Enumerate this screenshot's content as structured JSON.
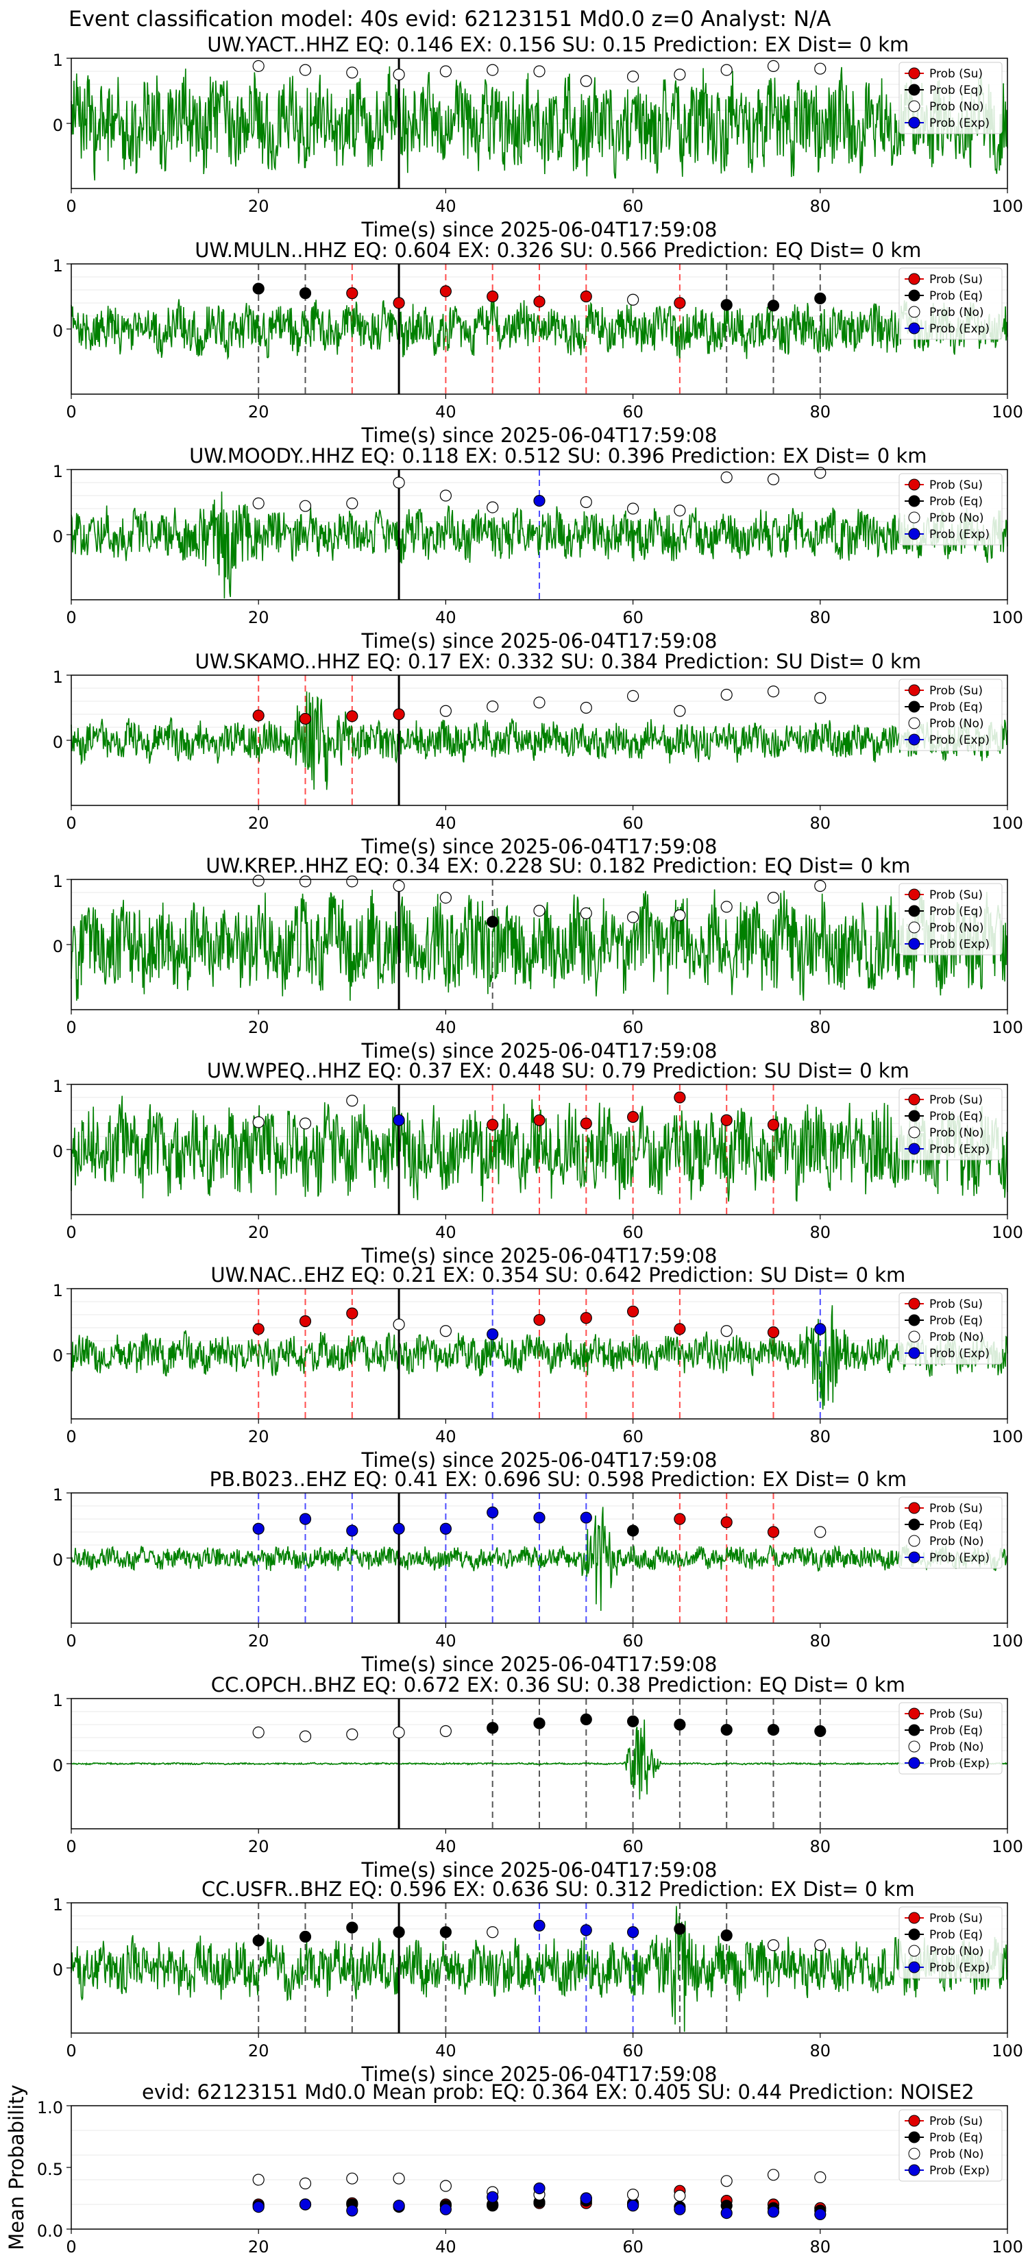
{
  "figure": {
    "suptitle": "Event classification model: 40s evid: 62123151 Md0.0 z=0 Analyst: N/A",
    "xlabel": "Time(s) since 2025-06-04T17:59:08"
  },
  "colors": {
    "su": "#e00000",
    "eq": "#000000",
    "no": "#ffffff",
    "exp": "#0000e0",
    "waveform": "#008000",
    "su_line": "#ff4d4d",
    "eq_line": "#555555",
    "exp_line": "#4d4dff"
  },
  "legend": [
    "Prob (Su)",
    "Prob (Eq)",
    "Prob (No)",
    "Prob (Exp)"
  ],
  "chart_data": [
    {
      "type": "scatter",
      "station": "UW.YACT..HHZ",
      "title": "UW.YACT..HHZ   EQ: 0.146  EX: 0.156  SU: 0.15   Prediction: EX    Dist= 0 km",
      "xlim": [
        0,
        100
      ],
      "ylim": [
        -1,
        1
      ],
      "xticks": [
        0,
        20,
        40,
        60,
        80,
        100
      ],
      "yticks": [
        0,
        1
      ],
      "pick_time": 35,
      "amp": 0.85,
      "burst": null,
      "x": [
        20,
        25,
        30,
        35,
        40,
        45,
        50,
        55,
        60,
        65,
        70,
        75,
        80
      ],
      "values": [
        0.88,
        0.82,
        0.78,
        0.75,
        0.8,
        0.82,
        0.8,
        0.65,
        0.72,
        0.75,
        0.82,
        0.88,
        0.84
      ],
      "classes": [
        "No",
        "No",
        "No",
        "No",
        "No",
        "No",
        "No",
        "No",
        "No",
        "No",
        "No",
        "No",
        "No"
      ]
    },
    {
      "type": "scatter",
      "station": "UW.MULN..HHZ",
      "title": "UW.MULN..HHZ   EQ: 0.604  EX: 0.326  SU: 0.566   Prediction: EQ    Dist= 0 km",
      "xlim": [
        0,
        100
      ],
      "ylim": [
        -1,
        1
      ],
      "xticks": [
        0,
        20,
        40,
        60,
        80,
        100
      ],
      "yticks": [
        0,
        1
      ],
      "pick_time": 35,
      "amp": 0.45,
      "burst": null,
      "x": [
        20,
        25,
        30,
        35,
        40,
        45,
        50,
        55,
        60,
        65,
        70,
        75,
        80
      ],
      "values": [
        0.62,
        0.55,
        0.55,
        0.4,
        0.58,
        0.5,
        0.42,
        0.5,
        0.45,
        0.4,
        0.37,
        0.36,
        0.47
      ],
      "classes": [
        "Eq",
        "Eq",
        "Su",
        "Su",
        "Su",
        "Su",
        "Su",
        "Su",
        "No",
        "Su",
        "Eq",
        "Eq",
        "Eq"
      ]
    },
    {
      "type": "scatter",
      "station": "UW.MOODY..HHZ",
      "title": "UW.MOODY..HHZ   EQ: 0.118  EX: 0.512  SU: 0.396   Prediction: EX    Dist= 0 km",
      "xlim": [
        0,
        100
      ],
      "ylim": [
        -1,
        1
      ],
      "xticks": [
        0,
        20,
        40,
        60,
        80,
        100
      ],
      "yticks": [
        0,
        1
      ],
      "pick_time": 35,
      "amp": 0.45,
      "burst": {
        "start": 13,
        "end": 20,
        "amp": 0.95
      },
      "x": [
        20,
        25,
        30,
        35,
        40,
        45,
        50,
        55,
        60,
        65,
        70,
        75,
        80
      ],
      "values": [
        0.48,
        0.44,
        0.48,
        0.8,
        0.6,
        0.42,
        0.52,
        0.5,
        0.4,
        0.37,
        0.88,
        0.85,
        0.95
      ],
      "classes": [
        "No",
        "No",
        "No",
        "No",
        "No",
        "No",
        "Exp",
        "No",
        "No",
        "No",
        "No",
        "No",
        "No"
      ]
    },
    {
      "type": "scatter",
      "station": "UW.SKAMO..HHZ",
      "title": "UW.SKAMO..HHZ   EQ: 0.17  EX: 0.332  SU: 0.384   Prediction: SU    Dist= 0 km",
      "xlim": [
        0,
        100
      ],
      "ylim": [
        -1,
        1
      ],
      "xticks": [
        0,
        20,
        40,
        60,
        80,
        100
      ],
      "yticks": [
        0,
        1
      ],
      "pick_time": 35,
      "amp": 0.35,
      "burst": {
        "start": 23,
        "end": 30,
        "amp": 0.95
      },
      "x": [
        20,
        25,
        30,
        35,
        40,
        45,
        50,
        55,
        60,
        65,
        70,
        75,
        80
      ],
      "values": [
        0.38,
        0.33,
        0.37,
        0.4,
        0.45,
        0.52,
        0.58,
        0.5,
        0.68,
        0.45,
        0.7,
        0.75,
        0.65
      ],
      "classes": [
        "Su",
        "Su",
        "Su",
        "Su",
        "No",
        "No",
        "No",
        "No",
        "No",
        "No",
        "No",
        "No",
        "No"
      ]
    },
    {
      "type": "scatter",
      "station": "UW.KREP..HHZ",
      "title": "UW.KREP..HHZ   EQ: 0.34  EX: 0.228  SU: 0.182   Prediction: EQ    Dist= 0 km",
      "xlim": [
        0,
        100
      ],
      "ylim": [
        -1,
        1
      ],
      "xticks": [
        0,
        20,
        40,
        60,
        80,
        100
      ],
      "yticks": [
        0,
        1
      ],
      "pick_time": 35,
      "amp": 0.85,
      "burst": null,
      "x": [
        20,
        25,
        30,
        35,
        40,
        45,
        50,
        55,
        60,
        65,
        70,
        75,
        80
      ],
      "values": [
        0.98,
        0.97,
        0.97,
        0.9,
        0.72,
        0.35,
        0.52,
        0.48,
        0.42,
        0.45,
        0.58,
        0.72,
        0.9
      ],
      "classes": [
        "No",
        "No",
        "No",
        "No",
        "No",
        "Eq",
        "No",
        "No",
        "No",
        "No",
        "No",
        "No",
        "No"
      ]
    },
    {
      "type": "scatter",
      "station": "UW.WPEQ..HHZ",
      "title": "UW.WPEQ..HHZ   EQ: 0.37  EX: 0.448  SU: 0.79   Prediction: SU    Dist= 0 km",
      "xlim": [
        0,
        100
      ],
      "ylim": [
        -1,
        1
      ],
      "xticks": [
        0,
        20,
        40,
        60,
        80,
        100
      ],
      "yticks": [
        0,
        1
      ],
      "pick_time": 35,
      "amp": 0.8,
      "burst": null,
      "x": [
        20,
        25,
        30,
        35,
        40,
        45,
        50,
        55,
        60,
        65,
        70,
        75,
        80
      ],
      "values": [
        0.42,
        0.4,
        0.75,
        0.45,
        null,
        0.38,
        0.45,
        0.4,
        0.5,
        0.8,
        0.45,
        0.38,
        null
      ],
      "classes": [
        "No",
        "No",
        "No",
        "Exp",
        null,
        "Su",
        "Su",
        "Su",
        "Su",
        "Su",
        "Su",
        "Su",
        null
      ]
    },
    {
      "type": "scatter",
      "station": "UW.NAC..EHZ",
      "title": "UW.NAC..EHZ   EQ: 0.21  EX: 0.354  SU: 0.642   Prediction: SU    Dist= 0 km",
      "xlim": [
        0,
        100
      ],
      "ylim": [
        -1,
        1
      ],
      "xticks": [
        0,
        20,
        40,
        60,
        80,
        100
      ],
      "yticks": [
        0,
        1
      ],
      "pick_time": 35,
      "amp": 0.35,
      "burst": {
        "start": 78,
        "end": 83,
        "amp": 0.95
      },
      "x": [
        20,
        25,
        30,
        35,
        40,
        45,
        50,
        55,
        60,
        65,
        70,
        75,
        80
      ],
      "values": [
        0.38,
        0.5,
        0.62,
        0.45,
        0.35,
        0.3,
        0.52,
        0.55,
        0.65,
        0.38,
        0.35,
        0.33,
        0.38
      ],
      "classes": [
        "Su",
        "Su",
        "Su",
        "No",
        "No",
        "Exp",
        "Su",
        "Su",
        "Su",
        "Su",
        "No",
        "Su",
        "Exp"
      ]
    },
    {
      "type": "scatter",
      "station": "PB.B023..EHZ",
      "title": "PB.B023..EHZ   EQ: 0.41  EX: 0.696  SU: 0.598   Prediction: EX    Dist= 0 km",
      "xlim": [
        0,
        100
      ],
      "ylim": [
        -1,
        1
      ],
      "xticks": [
        0,
        20,
        40,
        60,
        80,
        100
      ],
      "yticks": [
        0,
        1
      ],
      "pick_time": 35,
      "amp": 0.2,
      "burst": {
        "start": 54,
        "end": 59,
        "amp": 0.8
      },
      "x": [
        20,
        25,
        30,
        35,
        40,
        45,
        50,
        55,
        60,
        65,
        70,
        75,
        80
      ],
      "values": [
        0.45,
        0.6,
        0.42,
        0.45,
        0.45,
        0.7,
        0.62,
        0.62,
        0.42,
        0.6,
        0.55,
        0.4,
        0.4
      ],
      "classes": [
        "Exp",
        "Exp",
        "Exp",
        "Exp",
        "Exp",
        "Exp",
        "Exp",
        "Exp",
        "Eq",
        "Su",
        "Su",
        "Su",
        "No"
      ]
    },
    {
      "type": "scatter",
      "station": "CC.OPCH..BHZ",
      "title": "CC.OPCH..BHZ   EQ: 0.672  EX: 0.36  SU: 0.38   Prediction: EQ    Dist= 0 km",
      "xlim": [
        0,
        100
      ],
      "ylim": [
        -1,
        1
      ],
      "xticks": [
        0,
        20,
        40,
        60,
        80,
        100
      ],
      "yticks": [
        0,
        1
      ],
      "pick_time": 35,
      "amp": 0.015,
      "burst": {
        "start": 59,
        "end": 63,
        "amp": 0.9
      },
      "x": [
        20,
        25,
        30,
        35,
        40,
        45,
        50,
        55,
        60,
        65,
        70,
        75,
        80
      ],
      "values": [
        0.48,
        0.42,
        0.45,
        0.48,
        0.5,
        0.55,
        0.62,
        0.68,
        0.65,
        0.6,
        0.52,
        0.52,
        0.5
      ],
      "classes": [
        "No",
        "No",
        "No",
        "No",
        "No",
        "Eq",
        "Eq",
        "Eq",
        "Eq",
        "Eq",
        "Eq",
        "Eq",
        "Eq"
      ]
    },
    {
      "type": "scatter",
      "station": "CC.USFR..BHZ",
      "title": "CC.USFR..BHZ   EQ: 0.596  EX: 0.636  SU: 0.312   Prediction: EX    Dist= 0 km",
      "xlim": [
        0,
        100
      ],
      "ylim": [
        -1,
        1
      ],
      "xticks": [
        0,
        20,
        40,
        60,
        80,
        100
      ],
      "yticks": [
        0,
        1
      ],
      "pick_time": 35,
      "amp": 0.5,
      "burst": {
        "start": 62,
        "end": 68,
        "amp": 0.95
      },
      "x": [
        20,
        25,
        30,
        35,
        40,
        45,
        50,
        55,
        60,
        65,
        70,
        75,
        80
      ],
      "values": [
        0.42,
        0.48,
        0.62,
        0.55,
        0.55,
        0.55,
        0.65,
        0.58,
        0.55,
        0.6,
        0.5,
        0.35,
        0.35
      ],
      "classes": [
        "Eq",
        "Eq",
        "Eq",
        "Eq",
        "Eq",
        "No",
        "Exp",
        "Exp",
        "Exp",
        "Eq",
        "Eq",
        "No",
        "No"
      ]
    },
    {
      "type": "scatter",
      "station": "mean",
      "title": "evid: 62123151  Md0.0   Mean prob:   EQ: 0.364  EX: 0.405  SU: 0.44   Prediction: NOISE2",
      "ylabel": "Mean Probability",
      "xlim": [
        0,
        100
      ],
      "ylim": [
        0,
        1
      ],
      "xticks": [
        0,
        20,
        40,
        60,
        80,
        100
      ],
      "yticks": [
        0.0,
        0.5,
        1.0
      ],
      "x": [
        20,
        25,
        30,
        35,
        40,
        45,
        50,
        55,
        60,
        65,
        70,
        75,
        80
      ],
      "series": [
        {
          "name": "Prob (Su)",
          "values": [
            0.2,
            0.2,
            0.21,
            0.19,
            0.2,
            0.2,
            0.21,
            0.21,
            0.21,
            0.31,
            0.23,
            0.2,
            0.17
          ]
        },
        {
          "name": "Prob (Eq)",
          "values": [
            0.19,
            0.2,
            0.2,
            0.18,
            0.19,
            0.19,
            0.22,
            0.23,
            0.2,
            0.18,
            0.19,
            0.17,
            0.15
          ]
        },
        {
          "name": "Prob (No)",
          "values": [
            0.4,
            0.37,
            0.41,
            0.41,
            0.35,
            0.3,
            0.28,
            0.25,
            0.28,
            0.27,
            0.39,
            0.44,
            0.42
          ]
        },
        {
          "name": "Prob (Exp)",
          "values": [
            0.18,
            0.2,
            0.15,
            0.19,
            0.16,
            0.26,
            0.33,
            0.25,
            0.19,
            0.16,
            0.13,
            0.14,
            0.12
          ]
        }
      ]
    }
  ]
}
